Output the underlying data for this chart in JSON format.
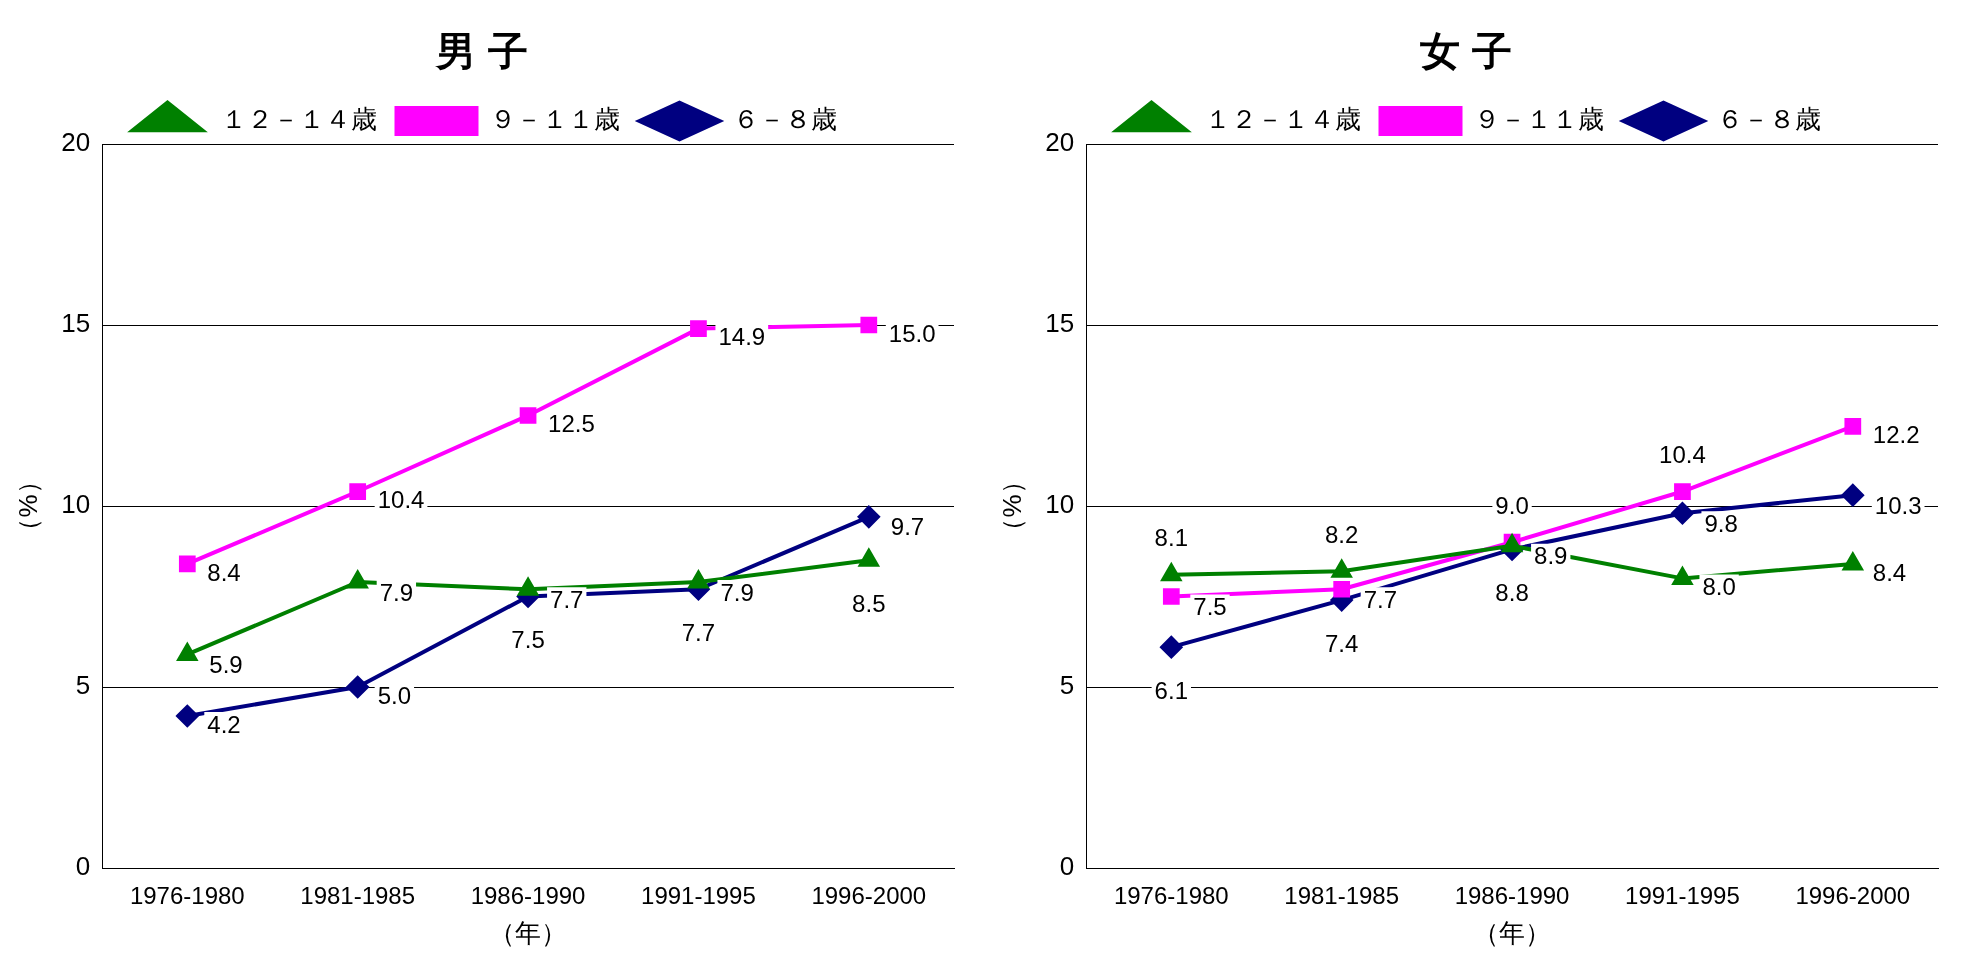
{
  "chart_data": [
    {
      "type": "line",
      "title": "男 子",
      "ylabel": "（%）",
      "xlabel": "（年）",
      "categories": [
        "1976-1980",
        "1981-1985",
        "1986-1990",
        "1991-1995",
        "1996-2000"
      ],
      "series": [
        {
          "name": "６－８歳",
          "color": "#000080",
          "marker": "diamond",
          "values": [
            4.2,
            5.0,
            7.5,
            7.7,
            9.7
          ],
          "value_labels": [
            "4.2",
            "5.0",
            "7.5",
            "7.7",
            "9.7"
          ]
        },
        {
          "name": "９－１１歳",
          "color": "#ff00ff",
          "marker": "square",
          "values": [
            8.4,
            10.4,
            12.5,
            14.9,
            15.0
          ],
          "value_labels": [
            "8.4",
            "10.4",
            "12.5",
            "14.9",
            "15.0"
          ]
        },
        {
          "name": "１２－１４歳",
          "color": "#008000",
          "marker": "triangle",
          "values": [
            5.9,
            7.9,
            7.7,
            7.9,
            8.5
          ],
          "value_labels": [
            "5.9",
            "7.9",
            "7.7",
            "7.9",
            "8.5"
          ]
        }
      ],
      "ylim": [
        0,
        20
      ],
      "yticks": [
        0,
        5,
        10,
        15,
        20
      ],
      "grid": "y",
      "legend": "top"
    },
    {
      "type": "line",
      "title": "女 子",
      "ylabel": "（%）",
      "xlabel": "（年）",
      "categories": [
        "1976-1980",
        "1981-1985",
        "1986-1990",
        "1991-1995",
        "1996-2000"
      ],
      "series": [
        {
          "name": "６－８歳",
          "color": "#000080",
          "marker": "diamond",
          "values": [
            6.1,
            7.4,
            8.8,
            9.8,
            10.3
          ],
          "value_labels": [
            "6.1",
            "7.4",
            "8.8",
            "9.8",
            "10.3"
          ]
        },
        {
          "name": "９－１１歳",
          "color": "#ff00ff",
          "marker": "square",
          "values": [
            7.5,
            7.7,
            9.0,
            10.4,
            12.2
          ],
          "value_labels": [
            "7.5",
            "7.7",
            "9.0",
            "10.4",
            "12.2"
          ]
        },
        {
          "name": "１２－１４歳",
          "color": "#008000",
          "marker": "triangle",
          "values": [
            8.1,
            8.2,
            8.9,
            8.0,
            8.4
          ],
          "value_labels": [
            "8.1",
            "8.2",
            "8.9",
            "8.0",
            "8.4"
          ]
        }
      ],
      "ylim": [
        0,
        20
      ],
      "yticks": [
        0,
        5,
        10,
        15,
        20
      ],
      "grid": "y",
      "legend": "top"
    }
  ]
}
